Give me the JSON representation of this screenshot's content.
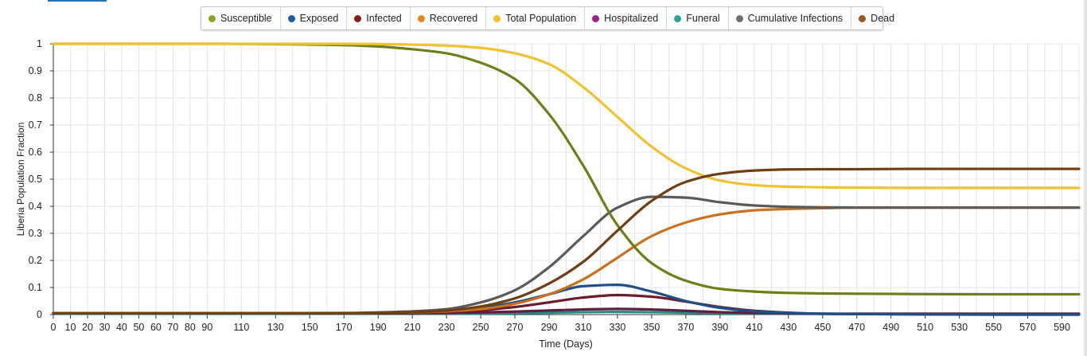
{
  "legend": [
    {
      "label": "Susceptible",
      "color": "#8aa61e"
    },
    {
      "label": "Exposed",
      "color": "#1f5aa0"
    },
    {
      "label": "Infected",
      "color": "#8b1a1a"
    },
    {
      "label": "Recovered",
      "color": "#e8821e"
    },
    {
      "label": "Total Population",
      "color": "#f0c232"
    },
    {
      "label": "Hospitalized",
      "color": "#a0208e"
    },
    {
      "label": "Funeral",
      "color": "#2aa39a"
    },
    {
      "label": "Cumulative Infections",
      "color": "#6e6e6e"
    },
    {
      "label": "Dead",
      "color": "#9a5a1c"
    }
  ],
  "chart_data": {
    "type": "line",
    "xlabel": "Time (Days)",
    "ylabel": "Liberia Population Fraction",
    "xlim": [
      0,
      600
    ],
    "ylim": [
      0,
      1
    ],
    "grid": true,
    "legend_position": "top",
    "x_ticks": [
      0,
      10,
      20,
      30,
      40,
      50,
      60,
      70,
      80,
      90,
      110,
      130,
      150,
      170,
      190,
      210,
      230,
      250,
      270,
      290,
      310,
      330,
      350,
      370,
      390,
      410,
      430,
      450,
      470,
      490,
      510,
      530,
      550,
      570,
      590
    ],
    "y_ticks": [
      0,
      0.1,
      0.2,
      0.3,
      0.4,
      0.5,
      0.6,
      0.7,
      0.8,
      0.9,
      1
    ],
    "y_tick_labels": [
      "0",
      "0.1",
      "0.2",
      "0.3",
      "0.4",
      "0.5",
      "0.6",
      "0.7",
      "0.8",
      "0.9",
      "1"
    ],
    "x": [
      0,
      100,
      170,
      190,
      210,
      230,
      250,
      270,
      290,
      310,
      330,
      350,
      370,
      390,
      410,
      430,
      450,
      470,
      500,
      550,
      600
    ],
    "series": [
      {
        "name": "Susceptible",
        "color": "#6b7f1a",
        "values": [
          1,
          1,
          0.995,
          0.99,
          0.98,
          0.965,
          0.93,
          0.87,
          0.74,
          0.55,
          0.33,
          0.19,
          0.125,
          0.095,
          0.085,
          0.08,
          0.078,
          0.077,
          0.076,
          0.075,
          0.075
        ]
      },
      {
        "name": "Exposed",
        "color": "#1f4f86",
        "values": [
          0.005,
          0.005,
          0.005,
          0.006,
          0.008,
          0.012,
          0.025,
          0.045,
          0.075,
          0.105,
          0.11,
          0.085,
          0.05,
          0.025,
          0.012,
          0.006,
          0.003,
          0.002,
          0.001,
          0,
          0
        ]
      },
      {
        "name": "Infected",
        "color": "#6e1a2a",
        "values": [
          0.005,
          0.005,
          0.005,
          0.005,
          0.006,
          0.009,
          0.016,
          0.028,
          0.045,
          0.063,
          0.072,
          0.066,
          0.048,
          0.028,
          0.014,
          0.007,
          0.003,
          0.002,
          0.001,
          0,
          0
        ]
      },
      {
        "name": "Recovered",
        "color": "#c8721e",
        "values": [
          0.005,
          0.005,
          0.005,
          0.006,
          0.008,
          0.012,
          0.02,
          0.04,
          0.075,
          0.13,
          0.21,
          0.29,
          0.34,
          0.37,
          0.385,
          0.39,
          0.393,
          0.395,
          0.395,
          0.395,
          0.395
        ]
      },
      {
        "name": "Total Population",
        "color": "#f0c232",
        "values": [
          1,
          1,
          1,
          0.999,
          0.997,
          0.993,
          0.985,
          0.965,
          0.925,
          0.84,
          0.73,
          0.62,
          0.54,
          0.495,
          0.478,
          0.472,
          0.47,
          0.469,
          0.468,
          0.468,
          0.468
        ]
      },
      {
        "name": "Hospitalized",
        "color": "#5e1f3e",
        "values": [
          0.005,
          0.005,
          0.005,
          0.005,
          0.005,
          0.006,
          0.008,
          0.011,
          0.015,
          0.019,
          0.021,
          0.019,
          0.014,
          0.009,
          0.006,
          0.004,
          0.003,
          0.003,
          0.003,
          0.003,
          0.003
        ]
      },
      {
        "name": "Funeral",
        "color": "#2a8b86",
        "values": [
          0.003,
          0.003,
          0.003,
          0.003,
          0.003,
          0.004,
          0.004,
          0.005,
          0.007,
          0.009,
          0.01,
          0.009,
          0.007,
          0.005,
          0.004,
          0.003,
          0.003,
          0.003,
          0.003,
          0.003,
          0.003
        ]
      },
      {
        "name": "Cumulative Infections",
        "color": "#5a5a5a",
        "values": [
          0.005,
          0.005,
          0.006,
          0.008,
          0.012,
          0.02,
          0.045,
          0.09,
          0.175,
          0.29,
          0.395,
          0.435,
          0.432,
          0.415,
          0.403,
          0.398,
          0.396,
          0.395,
          0.395,
          0.395,
          0.395
        ]
      },
      {
        "name": "Dead",
        "color": "#6e3f15",
        "values": [
          0.005,
          0.005,
          0.005,
          0.006,
          0.009,
          0.015,
          0.03,
          0.06,
          0.115,
          0.195,
          0.31,
          0.42,
          0.49,
          0.52,
          0.532,
          0.536,
          0.537,
          0.537,
          0.538,
          0.538,
          0.538
        ]
      }
    ]
  }
}
